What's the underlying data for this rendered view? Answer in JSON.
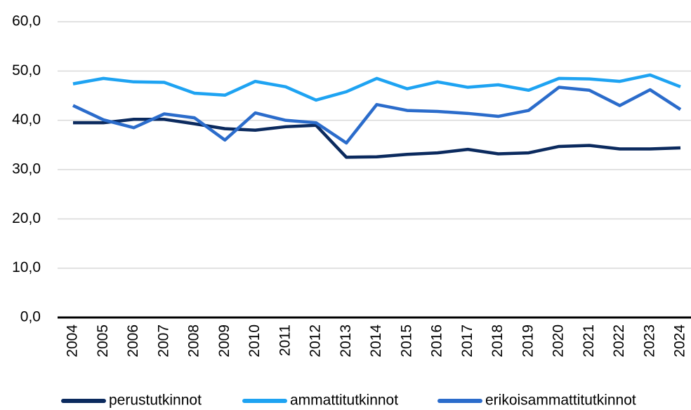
{
  "chart_data": {
    "type": "line",
    "categories": [
      "2004",
      "2005",
      "2006",
      "2007",
      "2008",
      "2009",
      "2010",
      "2011",
      "2012",
      "2013",
      "2014",
      "2015",
      "2016",
      "2017",
      "2018",
      "2019",
      "2020",
      "2021",
      "2022",
      "2023",
      "2024"
    ],
    "series": [
      {
        "name": "perustutkinnot",
        "color": "#0b2a5e",
        "values": [
          39.5,
          39.5,
          40.2,
          40.2,
          39.3,
          38.3,
          38.0,
          38.7,
          39.0,
          32.5,
          32.6,
          33.1,
          33.4,
          34.1,
          33.2,
          33.4,
          34.7,
          34.9,
          34.2,
          34.2,
          34.4
        ]
      },
      {
        "name": "ammattitutkinnot",
        "color": "#1ea3f2",
        "values": [
          47.4,
          48.5,
          47.8,
          47.7,
          45.5,
          45.1,
          47.9,
          46.8,
          44.1,
          45.8,
          48.5,
          46.4,
          47.8,
          46.7,
          47.2,
          46.1,
          48.5,
          48.4,
          47.9,
          49.2,
          46.8
        ]
      },
      {
        "name": "erikoisammattitutkinnot",
        "color": "#2b6ccb",
        "values": [
          43.0,
          40.1,
          38.5,
          41.3,
          40.5,
          36.0,
          41.5,
          40.0,
          39.5,
          35.4,
          43.2,
          42.0,
          41.8,
          41.4,
          40.8,
          42.0,
          46.7,
          46.1,
          43.0,
          46.2,
          42.2
        ]
      }
    ],
    "ylim": [
      0,
      60
    ],
    "yticks": [
      {
        "value": 0,
        "label": "0,0"
      },
      {
        "value": 10,
        "label": "10,0"
      },
      {
        "value": 20,
        "label": "20,0"
      },
      {
        "value": 30,
        "label": "30,0"
      },
      {
        "value": 40,
        "label": "40,0"
      },
      {
        "value": 50,
        "label": "50,0"
      },
      {
        "value": 60,
        "label": "60,0"
      }
    ],
    "grid": true,
    "legend": "bottom"
  }
}
